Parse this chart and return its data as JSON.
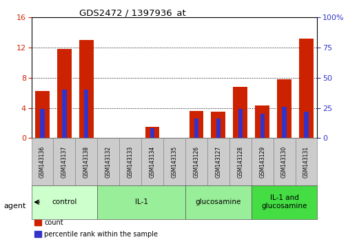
{
  "title": "GDS2472 / 1397936_at",
  "samples": [
    "GSM143136",
    "GSM143137",
    "GSM143138",
    "GSM143132",
    "GSM143133",
    "GSM143134",
    "GSM143135",
    "GSM143126",
    "GSM143127",
    "GSM143128",
    "GSM143129",
    "GSM143130",
    "GSM143131"
  ],
  "count_values": [
    6.2,
    11.8,
    13.0,
    0.0,
    0.0,
    1.5,
    0.0,
    3.6,
    3.5,
    6.8,
    4.3,
    7.8,
    13.2
  ],
  "percentile_values": [
    24,
    40,
    40,
    0,
    0,
    8,
    0,
    16,
    16,
    24,
    20,
    26,
    22
  ],
  "bar_color": "#cc2200",
  "percentile_color": "#3333cc",
  "ylim_left": [
    0,
    16
  ],
  "ylim_right": [
    0,
    100
  ],
  "yticks_left": [
    0,
    4,
    8,
    12,
    16
  ],
  "yticks_right": [
    0,
    25,
    50,
    75,
    100
  ],
  "group_configs": [
    {
      "start": 0,
      "end": 3,
      "label": "control",
      "color": "#ccffcc"
    },
    {
      "start": 3,
      "end": 7,
      "label": "IL-1",
      "color": "#99ee99"
    },
    {
      "start": 7,
      "end": 10,
      "label": "glucosamine",
      "color": "#99ee99"
    },
    {
      "start": 10,
      "end": 13,
      "label": "IL-1 and\nglucosamine",
      "color": "#44dd44"
    }
  ],
  "legend_items": [
    {
      "label": "count",
      "color": "#cc2200"
    },
    {
      "label": "percentile rank within the sample",
      "color": "#3333cc"
    }
  ],
  "agent_label": "agent"
}
